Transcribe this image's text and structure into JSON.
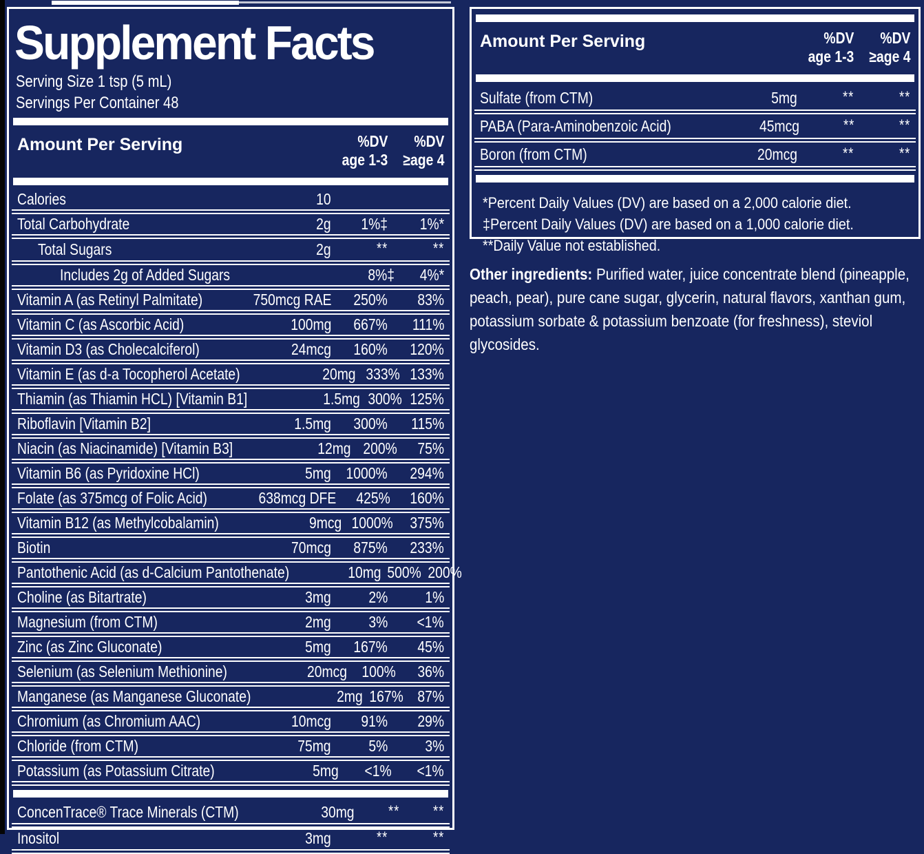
{
  "colors": {
    "background": "#17265F",
    "border_and_text": "#FFFFFF",
    "left_edge_strip": "#040404"
  },
  "shared_header": {
    "amount_label": "Amount Per Serving",
    "dv1_line1": "%DV",
    "dv1_line2": "age 1-3",
    "dv2_line1": "%DV",
    "dv2_line2": "≥age 4"
  },
  "left_panel": {
    "title": "Supplement Facts",
    "serving_size": "Serving Size 1 tsp (5 mL)",
    "servings_per_container": "Servings Per Container 48",
    "rows": [
      {
        "name": "Calories",
        "amount": "10",
        "dv1": "",
        "dv2": "",
        "indent": 0
      },
      {
        "name": "Total Carbohydrate",
        "amount": "2g",
        "dv1": "1%‡",
        "dv2": "1%*",
        "indent": 0
      },
      {
        "name": "Total Sugars",
        "amount": "2g",
        "dv1": "**",
        "dv2": "**",
        "indent": 1
      },
      {
        "name": "Includes 2g of Added Sugars",
        "amount": "",
        "dv1": "8%‡",
        "dv2": "4%*",
        "indent": 2
      },
      {
        "name": "Vitamin A (as Retinyl Palmitate)",
        "amount": "750mcg RAE",
        "dv1": "250%",
        "dv2": "83%",
        "indent": 0
      },
      {
        "name": "Vitamin C (as Ascorbic Acid)",
        "amount": "100mg",
        "dv1": "667%",
        "dv2": "111%",
        "indent": 0
      },
      {
        "name": "Vitamin D3 (as Cholecalciferol)",
        "amount": "24mcg",
        "dv1": "160%",
        "dv2": "120%",
        "indent": 0
      },
      {
        "name": "Vitamin E (as d-a Tocopherol Acetate)",
        "amount": "20mg",
        "dv1": "333%",
        "dv2": "133%",
        "indent": 0
      },
      {
        "name": "Thiamin (as Thiamin HCL) [Vitamin B1]",
        "amount": "1.5mg",
        "dv1": "300%",
        "dv2": "125%",
        "indent": 0
      },
      {
        "name": "Riboflavin [Vitamin B2]",
        "amount": "1.5mg",
        "dv1": "300%",
        "dv2": "115%",
        "indent": 0
      },
      {
        "name": "Niacin (as Niacinamide) [Vitamin B3]",
        "amount": "12mg",
        "dv1": "200%",
        "dv2": "75%",
        "indent": 0
      },
      {
        "name": "Vitamin B6 (as Pyridoxine HCl)",
        "amount": "5mg",
        "dv1": "1000%",
        "dv2": "294%",
        "indent": 0
      },
      {
        "name": "Folate (as 375mcg of Folic Acid)",
        "amount": "638mcg DFE",
        "dv1": "425%",
        "dv2": "160%",
        "indent": 0
      },
      {
        "name": "Vitamin B12 (as Methylcobalamin)",
        "amount": "9mcg",
        "dv1": "1000%",
        "dv2": "375%",
        "indent": 0
      },
      {
        "name": "Biotin",
        "amount": "70mcg",
        "dv1": "875%",
        "dv2": "233%",
        "indent": 0
      },
      {
        "name": "Pantothenic Acid (as d-Calcium Pantothenate)",
        "amount": "10mg",
        "dv1": "500%",
        "dv2": "200%",
        "indent": 0
      },
      {
        "name": "Choline (as Bitartrate)",
        "amount": "3mg",
        "dv1": "2%",
        "dv2": "1%",
        "indent": 0
      },
      {
        "name": "Magnesium (from CTM)",
        "amount": "2mg",
        "dv1": "3%",
        "dv2": "<1%",
        "indent": 0
      },
      {
        "name": "Zinc (as Zinc Gluconate)",
        "amount": "5mg",
        "dv1": "167%",
        "dv2": "45%",
        "indent": 0
      },
      {
        "name": "Selenium (as Selenium Methionine)",
        "amount": "20mcg",
        "dv1": "100%",
        "dv2": "36%",
        "indent": 0
      },
      {
        "name": "Manganese (as Manganese Gluconate)",
        "amount": "2mg",
        "dv1": "167%",
        "dv2": "87%",
        "indent": 0
      },
      {
        "name": "Chromium (as Chromium AAC)",
        "amount": "10mcg",
        "dv1": "91%",
        "dv2": "29%",
        "indent": 0
      },
      {
        "name": "Chloride (from CTM)",
        "amount": "75mg",
        "dv1": "5%",
        "dv2": "3%",
        "indent": 0
      },
      {
        "name": "Potassium (as Potassium Citrate)",
        "amount": "5mg",
        "dv1": "<1%",
        "dv2": "<1%",
        "indent": 0
      }
    ],
    "rows_section2": [
      {
        "name": "ConcenTrace® Trace Minerals (CTM)",
        "amount": "30mg",
        "dv1": "**",
        "dv2": "**",
        "indent": 0
      },
      {
        "name": "Inositol",
        "amount": "3mg",
        "dv1": "**",
        "dv2": "**",
        "indent": 0
      }
    ]
  },
  "right_panel": {
    "rows": [
      {
        "name": "Sulfate (from CTM)",
        "amount": "5mg",
        "dv1": "**",
        "dv2": "**",
        "indent": 0
      },
      {
        "name": "PABA (Para-Aminobenzoic Acid)",
        "amount": "45mcg",
        "dv1": "**",
        "dv2": "**",
        "indent": 0
      },
      {
        "name": "Boron (from CTM)",
        "amount": "20mcg",
        "dv1": "**",
        "dv2": "**",
        "indent": 0
      }
    ],
    "footnotes": [
      "*Percent Daily Values (DV) are based on a 2,000 calorie diet.",
      "‡Percent Daily Values (DV) are based on a 1,000 calorie diet.",
      "**Daily Value not established."
    ],
    "other_ingredients_label": "Other ingredients:",
    "other_ingredients_text": " Purified water, juice concentrate blend (pineapple, peach, pear), pure cane sugar, glycerin, natural flavors, xanthan gum, potassium sorbate & potassium benzoate (for freshness), steviol glycosides."
  }
}
